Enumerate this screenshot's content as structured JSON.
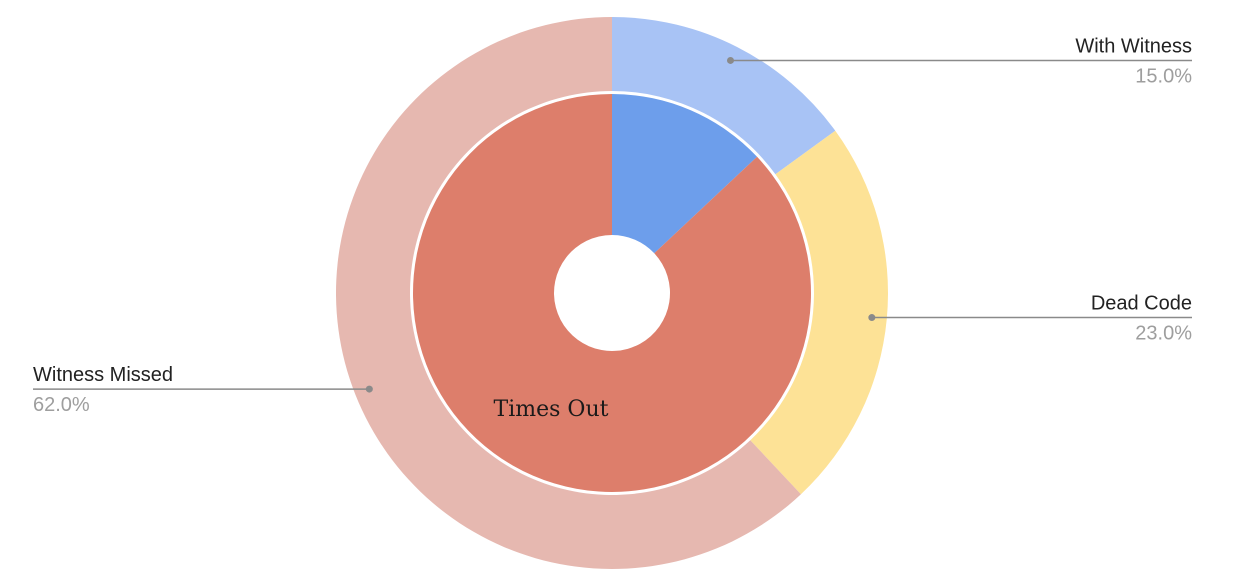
{
  "chart_data": {
    "type": "pie",
    "outer_ring": [
      {
        "label": "With Witness",
        "value": 15.0,
        "value_label": "15.0%",
        "color": "#a8c3f5"
      },
      {
        "label": "Dead Code",
        "value": 23.0,
        "value_label": "23.0%",
        "color": "#fde296"
      },
      {
        "label": "Witness Missed",
        "value": 62.0,
        "value_label": "62.0%",
        "color": "#e6b8b0"
      }
    ],
    "inner_ring": [
      {
        "value": 13.0,
        "color": "#6d9eeb"
      },
      {
        "value": 87.0,
        "color": "#dd7e6b"
      }
    ],
    "annotations": [
      "Times Out"
    ]
  }
}
